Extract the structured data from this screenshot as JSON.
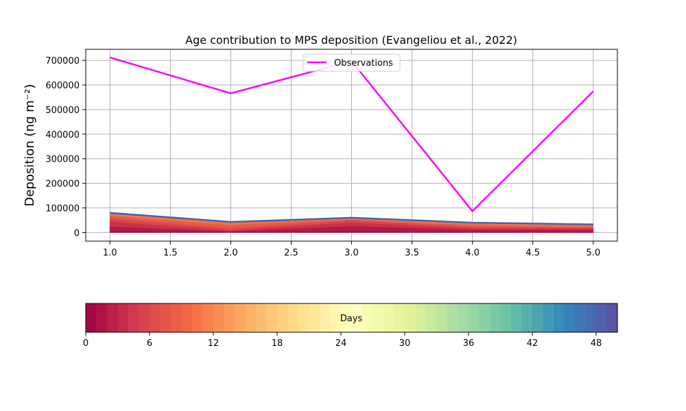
{
  "chart_data": {
    "type": "area",
    "title": "Age contribution to MPS deposition (Evangeliou et al., 2022)",
    "ylabel": "Deposition (ng m⁻²)",
    "xlabel": "",
    "x": [
      1.0,
      2.0,
      3.0,
      4.0,
      5.0
    ],
    "xlim": [
      0.8,
      5.2
    ],
    "ylim": [
      -35000,
      745000
    ],
    "xticks": [
      "1.0",
      "1.5",
      "2.0",
      "2.5",
      "3.0",
      "3.5",
      "4.0",
      "4.5",
      "5.0"
    ],
    "xtick_values": [
      1.0,
      1.5,
      2.0,
      2.5,
      3.0,
      3.5,
      4.0,
      4.5,
      5.0
    ],
    "yticks": [
      "0",
      "100000",
      "200000",
      "300000",
      "400000",
      "500000",
      "600000",
      "700000"
    ],
    "ytick_values": [
      0,
      100000,
      200000,
      300000,
      400000,
      500000,
      600000,
      700000
    ],
    "grid": true,
    "stacked_total": [
      80000,
      43000,
      60000,
      40000,
      33000
    ],
    "age_layers": [
      {
        "days": 0,
        "values": [
          5000,
          3000,
          5000,
          3000,
          3000
        ]
      },
      {
        "days": 2,
        "values": [
          20000,
          2000,
          22000,
          8000,
          8000
        ]
      },
      {
        "days": 4,
        "values": [
          20000,
          5000,
          15000,
          7000,
          5000
        ]
      },
      {
        "days": 6,
        "values": [
          12000,
          8000,
          8000,
          6000,
          4000
        ]
      },
      {
        "days": 8,
        "values": [
          10000,
          12000,
          4000,
          6000,
          3000
        ]
      },
      {
        "days": 10,
        "values": [
          6000,
          9000,
          3000,
          6000,
          6000
        ]
      },
      {
        "days": 12,
        "values": [
          2000,
          2000,
          2000,
          2000,
          2000
        ]
      },
      {
        "days": 14,
        "values": [
          1000,
          0,
          0,
          0,
          0
        ]
      },
      {
        "days": 48,
        "values": [
          4000,
          2000,
          1000,
          2000,
          2000
        ]
      }
    ],
    "observations": {
      "name": "Observations",
      "values": [
        712000,
        566000,
        697000,
        87000,
        574000
      ],
      "color": "#ff00ff"
    },
    "legend_placement": "upper-center",
    "colorbar": {
      "label": "Days",
      "min": 0,
      "max": 50,
      "ticks": [
        "0",
        "6",
        "12",
        "18",
        "24",
        "30",
        "36",
        "42",
        "48"
      ],
      "tick_values": [
        0,
        6,
        12,
        18,
        24,
        30,
        36,
        42,
        48
      ],
      "colormap": "Spectral",
      "levels": 50
    },
    "colors": {
      "outline": "#4a5faa",
      "grid": "#b0b0b0"
    }
  }
}
